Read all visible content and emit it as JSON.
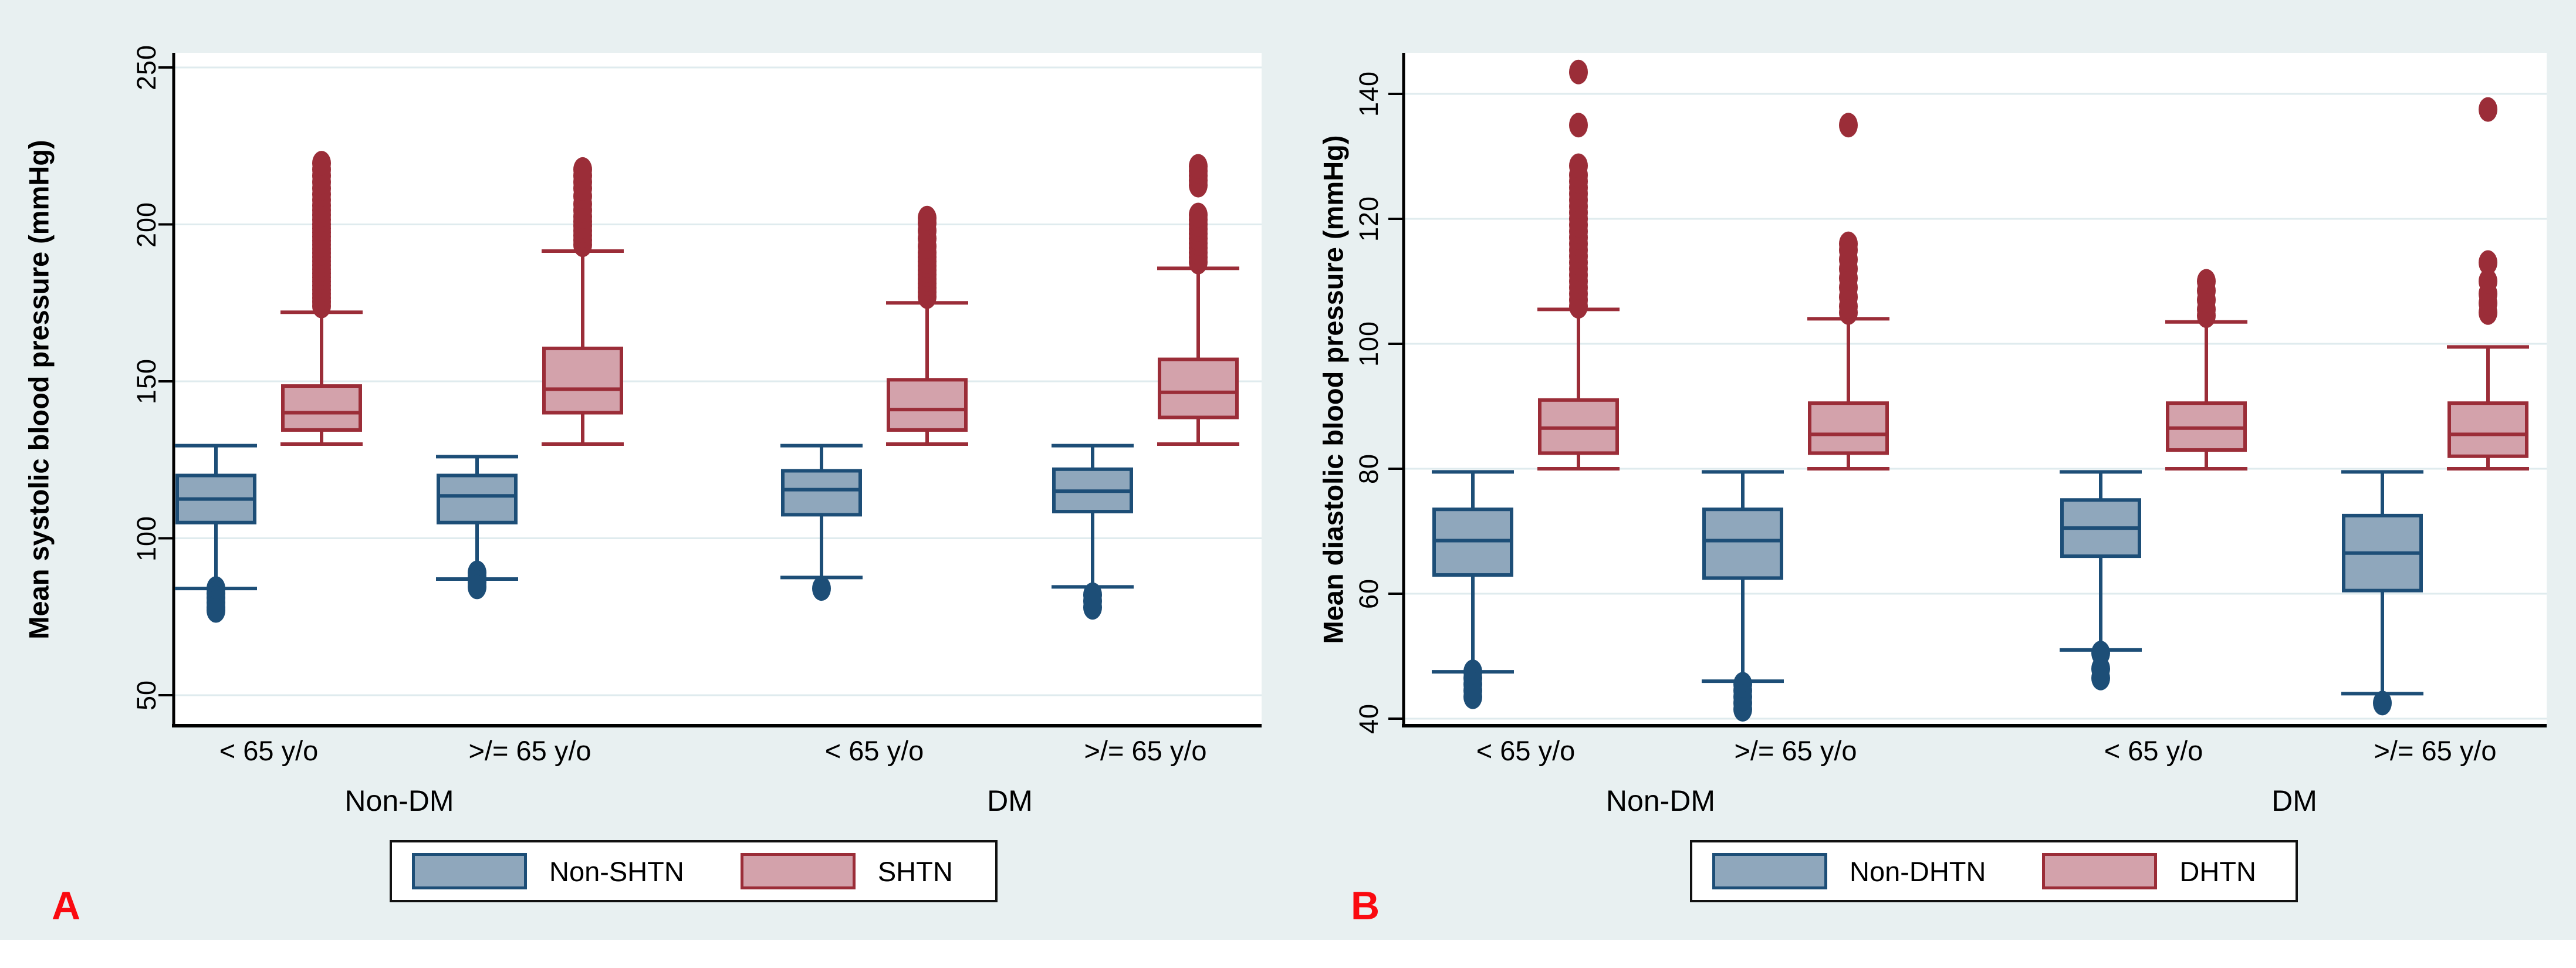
{
  "figure": {
    "background_color": "#e8f0f1",
    "plot_background": "#ffffff",
    "gridline_color": "#dfebee",
    "axis_color": "#000000",
    "panel_letter_color": "#fa0a10",
    "series_colors": {
      "blue": {
        "fill": "#8fa7bc",
        "stroke": "#1d4e77"
      },
      "red": {
        "fill": "#d3a2ab",
        "stroke": "#9b2d38"
      }
    }
  },
  "chart_data": [
    {
      "type": "box",
      "panel_letter": "A",
      "ylabel": "Mean systolic blood pressure (mmHg)",
      "y_axis": {
        "ticks": [
          50,
          100,
          150,
          200,
          250
        ],
        "range": [
          39,
          255
        ],
        "grid": true
      },
      "x_axis": {
        "age_labels": [
          "< 65 y/o",
          ">/= 65 y/o",
          "< 65 y/o",
          ">/= 65 y/o"
        ],
        "group_labels": [
          "Non-DM",
          "DM"
        ]
      },
      "legend": {
        "position": "bottom-center",
        "entries": [
          {
            "label": "Non-SHTN",
            "color_key": "blue"
          },
          {
            "label": "SHTN",
            "color_key": "red"
          }
        ]
      },
      "boxes": [
        {
          "group": "Non-DM",
          "age": "< 65 y/o",
          "series": "Non-SHTN",
          "color_key": "blue",
          "whisker_low": 84,
          "q1": 105,
          "median": 112.5,
          "q3": 120,
          "whisker_high": 129.5,
          "outliers": [
            84,
            82.5,
            81,
            79.5,
            78,
            77
          ]
        },
        {
          "group": "Non-DM",
          "age": "< 65 y/o",
          "series": "SHTN",
          "color_key": "red",
          "whisker_low": 130,
          "q1": 134.5,
          "median": 140,
          "q3": 148.5,
          "whisker_high": 172,
          "outliers": [
            174,
            175.3,
            176.6,
            177.9,
            179.2,
            180.5,
            181.8,
            183.1,
            184.4,
            185.7,
            187,
            188.3,
            189.6,
            190.9,
            192.2,
            193.5,
            194.8,
            196.1,
            197.4,
            198.7,
            200,
            201.5,
            203,
            204.5,
            206,
            207.8,
            209.6,
            211.5,
            213.5,
            215.5,
            217.5,
            219.5
          ]
        },
        {
          "group": "Non-DM",
          "age": ">/= 65 y/o",
          "series": "Non-SHTN",
          "color_key": "blue",
          "whisker_low": 87,
          "q1": 105,
          "median": 113.5,
          "q3": 120,
          "whisker_high": 126,
          "outliers": [
            89,
            87.5,
            86,
            84.5
          ]
        },
        {
          "group": "Non-DM",
          "age": ">/= 65 y/o",
          "series": "SHTN",
          "color_key": "red",
          "whisker_low": 130,
          "q1": 140,
          "median": 147.5,
          "q3": 160.5,
          "whisker_high": 191.5,
          "outliers": [
            193.5,
            195,
            196.5,
            198,
            199.5,
            201,
            202.5,
            204.5,
            206.5,
            209,
            211.5,
            213.5,
            215.5,
            217.5
          ]
        },
        {
          "group": "DM",
          "age": "< 65 y/o",
          "series": "Non-SHTN",
          "color_key": "blue",
          "whisker_low": 87.5,
          "q1": 107.5,
          "median": 115.5,
          "q3": 121.5,
          "whisker_high": 129.5,
          "outliers": [
            84
          ]
        },
        {
          "group": "DM",
          "age": "< 65 y/o",
          "series": "SHTN",
          "color_key": "red",
          "whisker_low": 130,
          "q1": 134.5,
          "median": 141,
          "q3": 150.5,
          "whisker_high": 175,
          "outliers": [
            177,
            178.4,
            179.8,
            181.2,
            182.6,
            184,
            185.4,
            186.8,
            188.2,
            189.6,
            191,
            193,
            195.5,
            198,
            200.5,
            202
          ]
        },
        {
          "group": "DM",
          "age": ">/= 65 y/o",
          "series": "Non-SHTN",
          "color_key": "blue",
          "whisker_low": 84.5,
          "q1": 108.5,
          "median": 115,
          "q3": 122,
          "whisker_high": 129.5,
          "outliers": [
            82,
            80,
            78
          ]
        },
        {
          "group": "DM",
          "age": ">/= 65 y/o",
          "series": "SHTN",
          "color_key": "red",
          "whisker_low": 130,
          "q1": 138.5,
          "median": 146.5,
          "q3": 157,
          "whisker_high": 186,
          "outliers": [
            188,
            189.5,
            191,
            192.5,
            194,
            195.5,
            197,
            198.5,
            200,
            201.5,
            203,
            212.5,
            214,
            215.5,
            217,
            218.5
          ]
        }
      ]
    },
    {
      "type": "box",
      "panel_letter": "B",
      "ylabel": "Mean diastolic blood pressure (mmHg)",
      "y_axis": {
        "ticks": [
          40,
          60,
          80,
          100,
          120,
          140
        ],
        "range": [
          34,
          146
        ],
        "grid": true
      },
      "x_axis": {
        "age_labels": [
          "< 65 y/o",
          ">/= 65 y/o",
          "< 65 y/o",
          ">/= 65 y/o"
        ],
        "group_labels": [
          "Non-DM",
          "DM"
        ]
      },
      "legend": {
        "position": "bottom-center",
        "entries": [
          {
            "label": "Non-DHTN",
            "color_key": "blue"
          },
          {
            "label": "DHTN",
            "color_key": "red"
          }
        ]
      },
      "boxes": [
        {
          "group": "Non-DM",
          "age": "< 65 y/o",
          "series": "Non-DHTN",
          "color_key": "blue",
          "whisker_low": 47.5,
          "q1": 63,
          "median": 68.5,
          "q3": 73.5,
          "whisker_high": 79.5,
          "outliers": [
            47.5,
            46.5,
            45.5,
            44.5,
            43.5
          ]
        },
        {
          "group": "Non-DM",
          "age": "< 65 y/o",
          "series": "DHTN",
          "color_key": "red",
          "whisker_low": 80,
          "q1": 82.5,
          "median": 86.5,
          "q3": 91,
          "whisker_high": 105.5,
          "outliers": [
            106,
            107,
            108,
            109,
            110,
            111,
            112,
            113,
            114,
            115,
            116,
            117,
            118,
            119,
            120,
            121,
            122,
            123,
            124,
            125,
            126,
            127,
            128.5,
            135,
            143.5
          ]
        },
        {
          "group": "Non-DM",
          "age": ">/= 65 y/o",
          "series": "Non-DHTN",
          "color_key": "blue",
          "whisker_low": 46,
          "q1": 62.5,
          "median": 68.5,
          "q3": 73.5,
          "whisker_high": 79.5,
          "outliers": [
            45.5,
            44.5,
            43.5,
            42.5,
            41.5
          ]
        },
        {
          "group": "Non-DM",
          "age": ">/= 65 y/o",
          "series": "DHTN",
          "color_key": "red",
          "whisker_low": 80,
          "q1": 82.5,
          "median": 85.5,
          "q3": 90.5,
          "whisker_high": 104,
          "outliers": [
            105,
            106,
            107.5,
            109,
            110.5,
            112,
            113.5,
            115,
            116,
            135
          ]
        },
        {
          "group": "DM",
          "age": "< 65 y/o",
          "series": "Non-DHTN",
          "color_key": "blue",
          "whisker_low": 51,
          "q1": 66,
          "median": 70.5,
          "q3": 75,
          "whisker_high": 79.5,
          "outliers": [
            50.5,
            48,
            46.5
          ]
        },
        {
          "group": "DM",
          "age": "< 65 y/o",
          "series": "DHTN",
          "color_key": "red",
          "whisker_low": 80,
          "q1": 83,
          "median": 86.5,
          "q3": 90.5,
          "whisker_high": 103.5,
          "outliers": [
            104.5,
            105.5,
            107,
            108.5,
            110
          ]
        },
        {
          "group": "DM",
          "age": ">/= 65 y/o",
          "series": "Non-DHTN",
          "color_key": "blue",
          "whisker_low": 44,
          "q1": 60.5,
          "median": 66.5,
          "q3": 72.5,
          "whisker_high": 79.5,
          "outliers": [
            42.5
          ]
        },
        {
          "group": "DM",
          "age": ">/= 65 y/o",
          "series": "DHTN",
          "color_key": "red",
          "whisker_low": 80,
          "q1": 82,
          "median": 85.5,
          "q3": 90.5,
          "whisker_high": 99.5,
          "outliers": [
            105,
            106.5,
            108,
            110,
            113,
            137.5
          ]
        }
      ]
    }
  ]
}
